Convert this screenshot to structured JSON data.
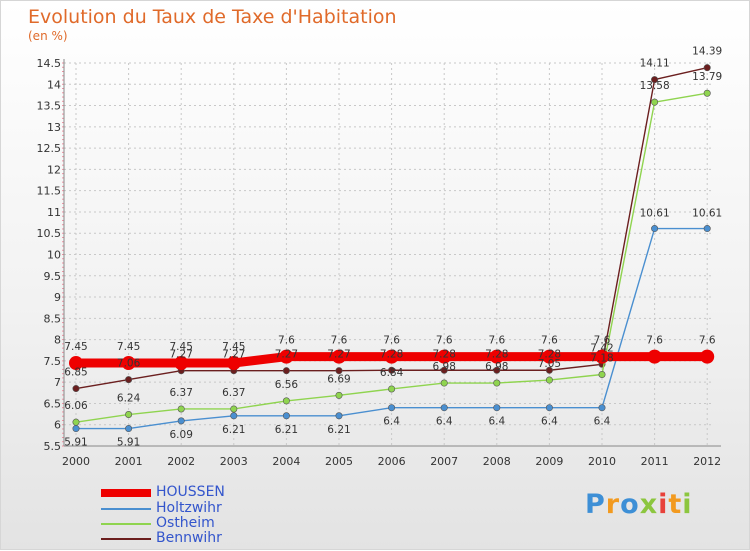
{
  "chart_data": {
    "type": "line",
    "title": "Evolution du Taux de Taxe d'Habitation",
    "ylabel": "(en %)",
    "xlabel": "",
    "categories": [
      "2000",
      "2001",
      "2002",
      "2003",
      "2004",
      "2005",
      "2006",
      "2007",
      "2008",
      "2009",
      "2010",
      "2011",
      "2012"
    ],
    "ylim": [
      5.5,
      14.5
    ],
    "yticks": [
      "5.5",
      "6",
      "6.5",
      "7",
      "7.5",
      "8",
      "8.5",
      "9",
      "9.5",
      "10",
      "10.5",
      "11",
      "11.5",
      "12",
      "12.5",
      "13",
      "13.5",
      "14",
      "14.5"
    ],
    "grid": true,
    "series": [
      {
        "name": "HOUSSEN",
        "color": "#ee0000",
        "values": [
          7.45,
          7.45,
          7.45,
          7.45,
          7.6,
          7.6,
          7.6,
          7.6,
          7.6,
          7.6,
          7.6,
          7.6,
          7.6
        ],
        "labels": [
          "7.45",
          "7.45",
          "7.45",
          "7.45",
          "7.6",
          "7.6",
          "7.6",
          "7.6",
          "7.6",
          "7.6",
          "7.6",
          "7.6",
          "7.6"
        ]
      },
      {
        "name": "Holtzwihr",
        "color": "#4a8fd0",
        "values": [
          5.91,
          5.91,
          6.09,
          6.21,
          6.21,
          6.21,
          6.4,
          6.4,
          6.4,
          6.4,
          6.4,
          10.61,
          10.61
        ],
        "labels": [
          "5.91",
          "5.91",
          "6.09",
          "6.21",
          "6.21",
          "6.21",
          "6.4",
          "6.4",
          "6.4",
          "6.4",
          "6.4",
          "10.61",
          "10.61"
        ]
      },
      {
        "name": "Ostheim",
        "color": "#8fd44f",
        "values": [
          6.06,
          6.24,
          6.37,
          6.37,
          6.56,
          6.69,
          6.84,
          6.98,
          6.98,
          7.05,
          7.18,
          13.58,
          13.79
        ],
        "labels": [
          "6.06",
          "6.24",
          "6.37",
          "6.37",
          "6.56",
          "6.69",
          "6.84",
          "6.98",
          "6.98",
          "7.05",
          "7.18",
          "13.58",
          "13.79"
        ]
      },
      {
        "name": "Bennwihr",
        "color": "#6b1f1f",
        "values": [
          6.85,
          7.06,
          7.27,
          7.27,
          7.27,
          7.27,
          7.28,
          7.28,
          7.28,
          7.28,
          7.42,
          14.11,
          14.39
        ],
        "labels": [
          "6.85",
          "7.06",
          "7.27",
          "7.27",
          "7.27",
          "7.27",
          "7.28",
          "7.28",
          "7.28",
          "7.28",
          "7.42",
          "14.11",
          "14.39"
        ]
      }
    ]
  },
  "header": {
    "title": "Evolution du Taux de Taxe d'Habitation",
    "unit": "(en %)"
  },
  "legend": {
    "items": [
      "HOUSSEN",
      "Holtzwihr",
      "Ostheim",
      "Bennwihr"
    ]
  },
  "logo": {
    "text": "Proxiti",
    "letters": [
      "P",
      "r",
      "o",
      "x",
      "i",
      "t",
      "i"
    ],
    "colors": [
      "#3d8fd6",
      "#f29a1f",
      "#3d8fd6",
      "#8cc63f",
      "#e8413a",
      "#f29a1f",
      "#8cc63f"
    ]
  }
}
